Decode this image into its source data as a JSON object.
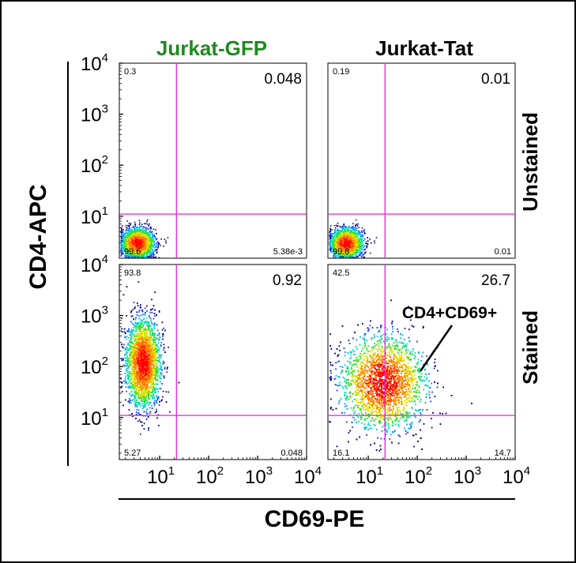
{
  "figure": {
    "column_titles": [
      "Jurkat-GFP",
      "Jurkat-Tat"
    ],
    "column_title_colors": [
      "#1e8a1e",
      "#000000"
    ],
    "row_titles": [
      "Unstained",
      "Stained"
    ],
    "x_axis_title": "CD69-PE",
    "y_axis_title": "CD4-APC",
    "tick_base": "10",
    "tick_exponents": [
      "1",
      "2",
      "3",
      "4"
    ],
    "annotation": "CD4+CD69+"
  },
  "colors": {
    "gate_line": "#e020e0",
    "density_scale": [
      "#00008b",
      "#1e3cff",
      "#00aaff",
      "#00e0c0",
      "#30e030",
      "#e0e000",
      "#ff8000",
      "#ff0000"
    ]
  },
  "chart_data": [
    {
      "type": "scatter",
      "panel": "Jurkat-GFP / Unstained",
      "x_scale": "log",
      "y_scale": "log",
      "xlim": [
        1.5,
        10000
      ],
      "ylim": [
        1.5,
        10000
      ],
      "gate": {
        "x": 22,
        "y": 11
      },
      "quadrants": {
        "upper_left": "0.3",
        "upper_right": "0.048",
        "lower_left": "99.6",
        "lower_right": "5.38e-3"
      },
      "population": {
        "center": [
          3.5,
          3
        ],
        "spread_decades": [
          0.16,
          0.14
        ],
        "events": 2600
      }
    },
    {
      "type": "scatter",
      "panel": "Jurkat-Tat / Unstained",
      "x_scale": "log",
      "y_scale": "log",
      "xlim": [
        1.5,
        10000
      ],
      "ylim": [
        1.5,
        10000
      ],
      "gate": {
        "x": 22,
        "y": 11
      },
      "quadrants": {
        "upper_left": "0.19",
        "upper_right": "0.01",
        "lower_left": "99.8",
        "lower_right": "0.01"
      },
      "population": {
        "center": [
          3.5,
          3
        ],
        "spread_decades": [
          0.16,
          0.14
        ],
        "events": 2600
      }
    },
    {
      "type": "scatter",
      "panel": "Jurkat-GFP / Stained",
      "x_scale": "log",
      "y_scale": "log",
      "xlim": [
        1.5,
        10000
      ],
      "ylim": [
        1.5,
        10000
      ],
      "gate": {
        "x": 22,
        "y": 11
      },
      "quadrants": {
        "upper_left": "93.8",
        "upper_right": "0.92",
        "lower_left": "5.27",
        "lower_right": "0.048"
      },
      "population": {
        "center": [
          4.5,
          120
        ],
        "spread_decades": [
          0.17,
          0.42
        ],
        "events": 6000
      }
    },
    {
      "type": "scatter",
      "panel": "Jurkat-Tat / Stained",
      "x_scale": "log",
      "y_scale": "log",
      "xlim": [
        1.5,
        10000
      ],
      "ylim": [
        1.5,
        10000
      ],
      "gate": {
        "x": 22,
        "y": 11
      },
      "quadrants": {
        "upper_left": "42.5",
        "upper_right": "26.7",
        "lower_left": "16.1",
        "lower_right": "14.7"
      },
      "population": {
        "center": [
          20,
          50
        ],
        "spread_decades": [
          0.42,
          0.45
        ],
        "events": 9000
      }
    }
  ]
}
